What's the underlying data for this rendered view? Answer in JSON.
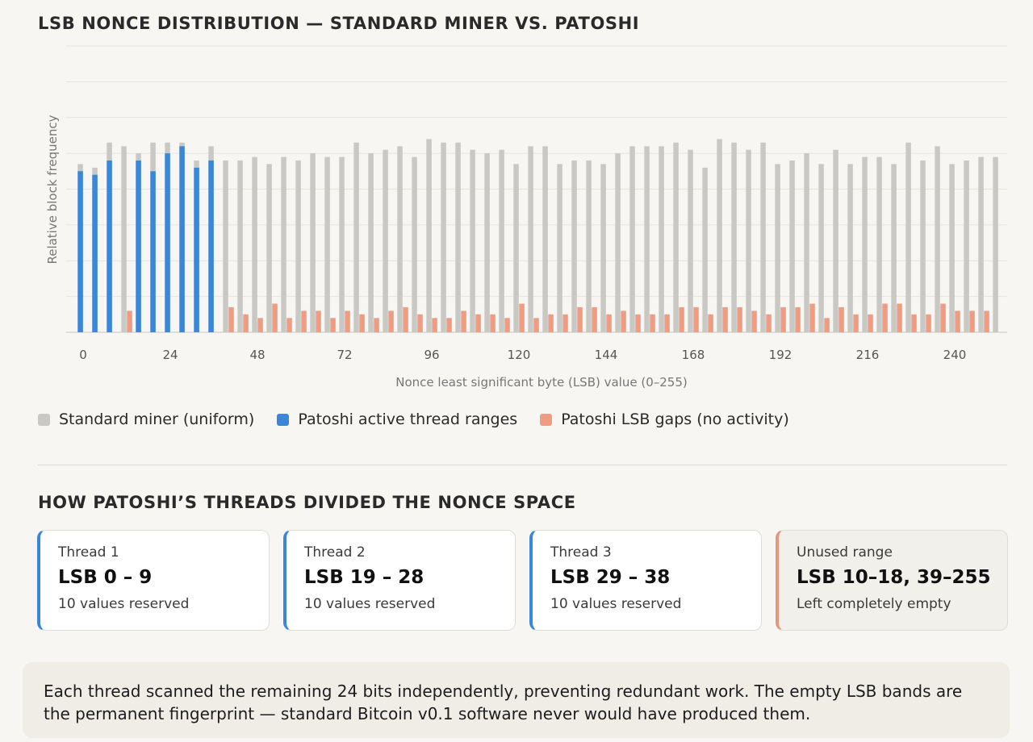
{
  "chart_data": {
    "type": "bar",
    "title": "LSB NONCE DISTRIBUTION — STANDARD MINER VS. PATOSHI",
    "xlabel": "Nonce least significant byte (LSB) value (0–255)",
    "ylabel": "Relative block frequency",
    "x_ticks": [
      "0",
      "24",
      "48",
      "72",
      "96",
      "120",
      "144",
      "168",
      "192",
      "216",
      "240"
    ],
    "x_tick_values": [
      0,
      24,
      48,
      72,
      96,
      120,
      144,
      168,
      192,
      216,
      240
    ],
    "xlim": [
      0,
      255
    ],
    "ylim": [
      0,
      8
    ],
    "bin_width": 4,
    "grid": true,
    "legend_position": "bottom-left",
    "series": [
      {
        "name": "Standard miner (uniform)",
        "color": "#c9c8c4",
        "values": [
          4.7,
          4.6,
          5.3,
          5.2,
          5.0,
          5.3,
          5.3,
          5.3,
          4.8,
          5.2,
          4.8,
          4.8,
          4.9,
          4.7,
          4.9,
          4.8,
          5.0,
          4.9,
          4.9,
          5.3,
          5.0,
          5.1,
          5.2,
          4.9,
          5.4,
          5.3,
          5.3,
          5.1,
          5.0,
          5.1,
          4.7,
          5.2,
          5.2,
          4.7,
          4.8,
          4.8,
          4.7,
          5.0,
          5.2,
          5.2,
          5.2,
          5.3,
          5.1,
          4.6,
          5.4,
          5.3,
          5.1,
          5.3,
          4.7,
          4.8,
          5.0,
          4.7,
          5.1,
          4.7,
          4.9,
          4.9,
          4.7,
          5.3,
          4.8,
          5.2,
          4.7,
          4.8,
          4.9,
          4.9
        ]
      },
      {
        "name": "Patoshi active thread ranges",
        "color": "#3a86d8",
        "values": [
          4.5,
          4.4,
          4.8,
          0,
          4.8,
          4.5,
          5.0,
          5.2,
          4.6,
          4.8,
          0,
          0,
          0,
          0,
          0,
          0,
          0,
          0,
          0,
          0,
          0,
          0,
          0,
          0,
          0,
          0,
          0,
          0,
          0,
          0,
          0,
          0,
          0,
          0,
          0,
          0,
          0,
          0,
          0,
          0,
          0,
          0,
          0,
          0,
          0,
          0,
          0,
          0,
          0,
          0,
          0,
          0,
          0,
          0,
          0,
          0,
          0,
          0,
          0,
          0,
          0,
          0,
          0,
          0
        ]
      },
      {
        "name": "Patoshi LSB gaps (no activity)",
        "color": "#ef9c82",
        "values": [
          0,
          0,
          0,
          0.6,
          0,
          0,
          0,
          0,
          0,
          0,
          0.7,
          0.5,
          0.4,
          0.8,
          0.4,
          0.6,
          0.6,
          0.4,
          0.6,
          0.5,
          0.4,
          0.6,
          0.7,
          0.5,
          0.4,
          0.4,
          0.6,
          0.5,
          0.5,
          0.4,
          0.8,
          0.4,
          0.5,
          0.5,
          0.7,
          0.7,
          0.5,
          0.6,
          0.5,
          0.5,
          0.5,
          0.7,
          0.7,
          0.5,
          0.7,
          0.7,
          0.6,
          0.5,
          0.7,
          0.7,
          0.8,
          0.4,
          0.7,
          0.5,
          0.5,
          0.8,
          0.8,
          0.5,
          0.5,
          0.8,
          0.6,
          0.6,
          0.6,
          0.0
        ]
      }
    ]
  },
  "threads": {
    "title": "HOW PATOSHI’S THREADS DIVIDED THE NONCE SPACE",
    "cards": [
      {
        "label": "Thread 1",
        "range": "LSB 0 – 9",
        "note": "10 values reserved"
      },
      {
        "label": "Thread 2",
        "range": "LSB 19 – 28",
        "note": "10 values reserved"
      },
      {
        "label": "Thread 3",
        "range": "LSB 29 – 38",
        "note": "10 values reserved"
      },
      {
        "label": "Unused range",
        "range": "LSB 10–18, 39–255",
        "note": "Left completely empty"
      }
    ]
  },
  "note": "Each thread scanned the remaining 24 bits independently, preventing redundant work. The empty LSB bands are the permanent fingerprint — standard Bitcoin v0.1 software never would have produced them."
}
